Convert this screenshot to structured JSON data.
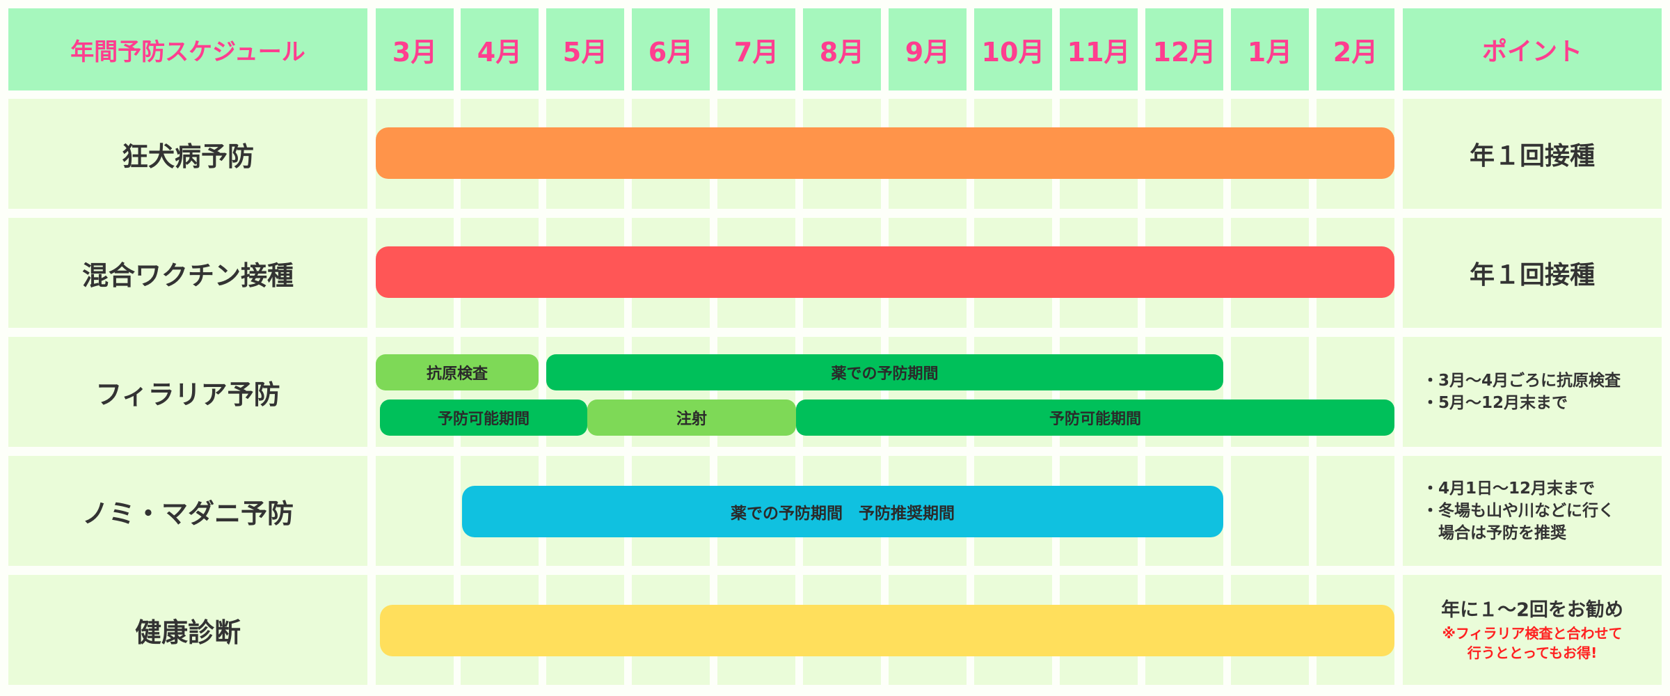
{
  "header": {
    "title": "年間予防スケジュール",
    "months": [
      "3月",
      "4月",
      "5月",
      "6月",
      "7月",
      "8月",
      "9月",
      "10月",
      "11月",
      "12月",
      "1月",
      "2月"
    ],
    "point_label": "ポイント"
  },
  "rows": {
    "rabies": {
      "label": "狂犬病予防",
      "point": "年１回接種",
      "bar_color": "#ff944a",
      "bars": [
        {
          "label": "",
          "start_month": "3月",
          "end_month": "2月"
        }
      ]
    },
    "vaccine": {
      "label": "混合ワクチン接種",
      "point": "年１回接種",
      "bar_color": "#ff5656",
      "bars": [
        {
          "label": "",
          "start_month": "3月",
          "end_month": "2月"
        }
      ]
    },
    "filaria": {
      "label": "フィラリア予防",
      "points": [
        "・3月～4月ごろに抗原検査",
        "・5月～12月末まで"
      ],
      "bars_top": [
        {
          "label": "抗原検査",
          "color": "#7ed957",
          "start_month": "3月",
          "end_month": "4月"
        },
        {
          "label": "薬での予防期間",
          "color": "#00c05a",
          "start_month": "5月",
          "end_month": "12月"
        }
      ],
      "bars_bottom": [
        {
          "label": "予防可能期間",
          "color": "#00c05a",
          "start_month": "3月",
          "end_month": "4月"
        },
        {
          "label": "注射",
          "color": "#7ed957",
          "start_month": "5月",
          "end_month": "7月"
        },
        {
          "label": "予防可能期間",
          "color": "#00c05a",
          "start_month": "7月",
          "end_month": "2月"
        }
      ]
    },
    "flea": {
      "label": "ノミ・マダニ予防",
      "points": [
        "・4月1日～12月末まで",
        "・冬場も山や川などに行く",
        "　場合は予防を推奨"
      ],
      "bar_color": "#10c1e0",
      "bars": [
        {
          "label": "薬での予防期間　予防推奨期間",
          "start_month": "4月",
          "end_month": "12月"
        }
      ]
    },
    "checkup": {
      "label": "健康診断",
      "point": "年に１～2回をお勧め",
      "note": "※フィラリア検査と合わせて\n行うととってもお得!",
      "bar_color": "#ffdf5c",
      "bars": [
        {
          "label": "",
          "start_month": "3月",
          "end_month": "2月"
        }
      ]
    }
  }
}
